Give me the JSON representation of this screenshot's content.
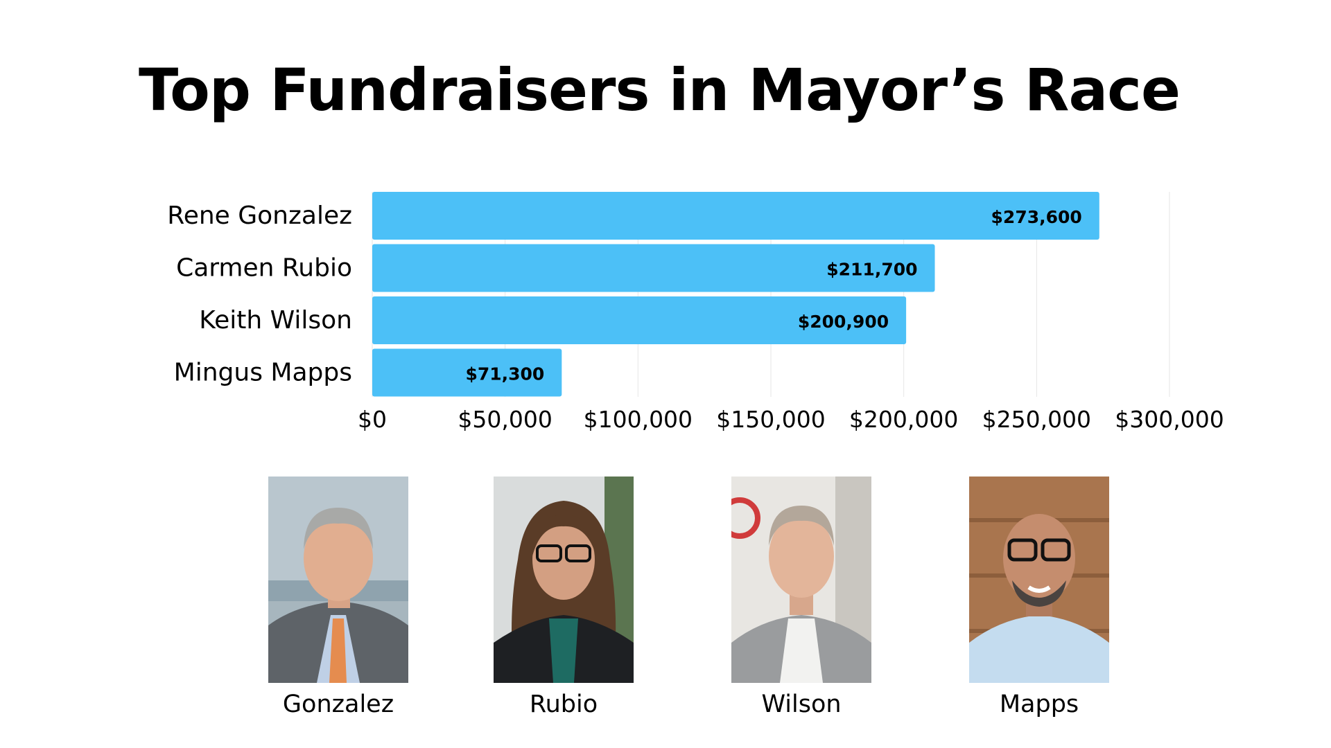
{
  "chart_data": {
    "type": "bar",
    "orientation": "horizontal",
    "title": "Top Fundraisers in Mayor’s Race",
    "categories": [
      "Rene Gonzalez",
      "Carmen Rubio",
      "Keith Wilson",
      "Mingus Mapps"
    ],
    "values": [
      273600,
      211700,
      200900,
      71300
    ],
    "value_labels": [
      "$273,600",
      "$211,700",
      "$200,900",
      "$71,300"
    ],
    "xlim": [
      0,
      300000
    ],
    "x_ticks": [
      0,
      50000,
      100000,
      150000,
      200000,
      250000,
      300000
    ],
    "x_tick_labels": [
      "$0",
      "$50,000",
      "$100,000",
      "$150,000",
      "$200,000",
      "$250,000",
      "$300,000"
    ],
    "grid": true,
    "legend": "none",
    "bar_color": "#4CC0F7",
    "grid_color": "#E6E6E6"
  },
  "photos": [
    {
      "caption": "Gonzalez",
      "icon": "portrait-gonzalez-icon"
    },
    {
      "caption": "Rubio",
      "icon": "portrait-rubio-icon"
    },
    {
      "caption": "Wilson",
      "icon": "portrait-wilson-icon"
    },
    {
      "caption": "Mapps",
      "icon": "portrait-mapps-icon"
    }
  ]
}
